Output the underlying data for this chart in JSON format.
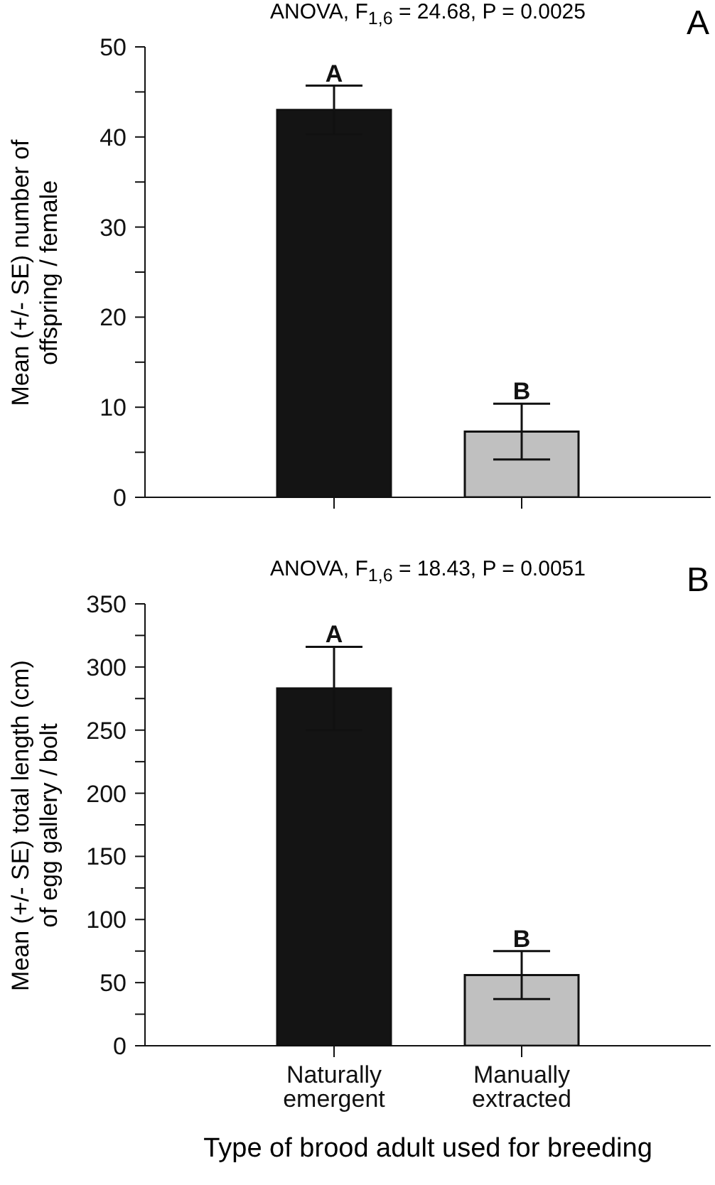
{
  "chart_data": [
    {
      "type": "bar",
      "title": "ANOVA, F$_{1,6}$ = 24.68, P = 0.0025",
      "ylabel": "Mean (+/- SE) number of offspring / female",
      "categories": [
        null,
        null
      ],
      "values": [
        43,
        7.3
      ],
      "errors": [
        2.7,
        3.1
      ],
      "colors": [
        "#141414",
        "#c0c0c0"
      ],
      "ylim": [
        0,
        50
      ],
      "yticks": [
        0,
        {
          "value": 5,
          "label": null
        },
        10,
        {
          "value": 15,
          "label": null
        },
        20,
        {
          "value": 25,
          "label": null
        },
        30,
        {
          "value": 35,
          "label": null
        },
        40,
        {
          "value": 45,
          "label": null
        },
        50
      ],
      "tick_labels": "y",
      "annotations": [
        "A",
        "A",
        "B"
      ]
    },
    {
      "type": "bar",
      "title": "ANOVA, F$_{1,6}$ = 18.43, P = 0.0051",
      "ylabel": "Mean (+/- SE) total length (cm) of egg gallery / bolt",
      "xlabel": "Type of brood adult used for breeding",
      "categories": [
        "Naturally emergent",
        "Manually extracted"
      ],
      "values": [
        283,
        56
      ],
      "errors": [
        33,
        19
      ],
      "colors": [
        "#141414",
        "#c0c0c0"
      ],
      "ylim": [
        0,
        350
      ],
      "yticks": [
        0,
        {
          "value": 25,
          "label": null
        },
        50,
        {
          "value": 75,
          "label": null
        },
        100,
        {
          "value": 125,
          "label": null
        },
        150,
        {
          "value": 175,
          "label": null
        },
        200,
        {
          "value": 225,
          "label": null
        },
        250,
        {
          "value": 275,
          "label": null
        },
        300,
        {
          "value": 325,
          "label": null
        },
        350
      ],
      "annotations": [
        "B",
        "A",
        "B"
      ]
    }
  ]
}
